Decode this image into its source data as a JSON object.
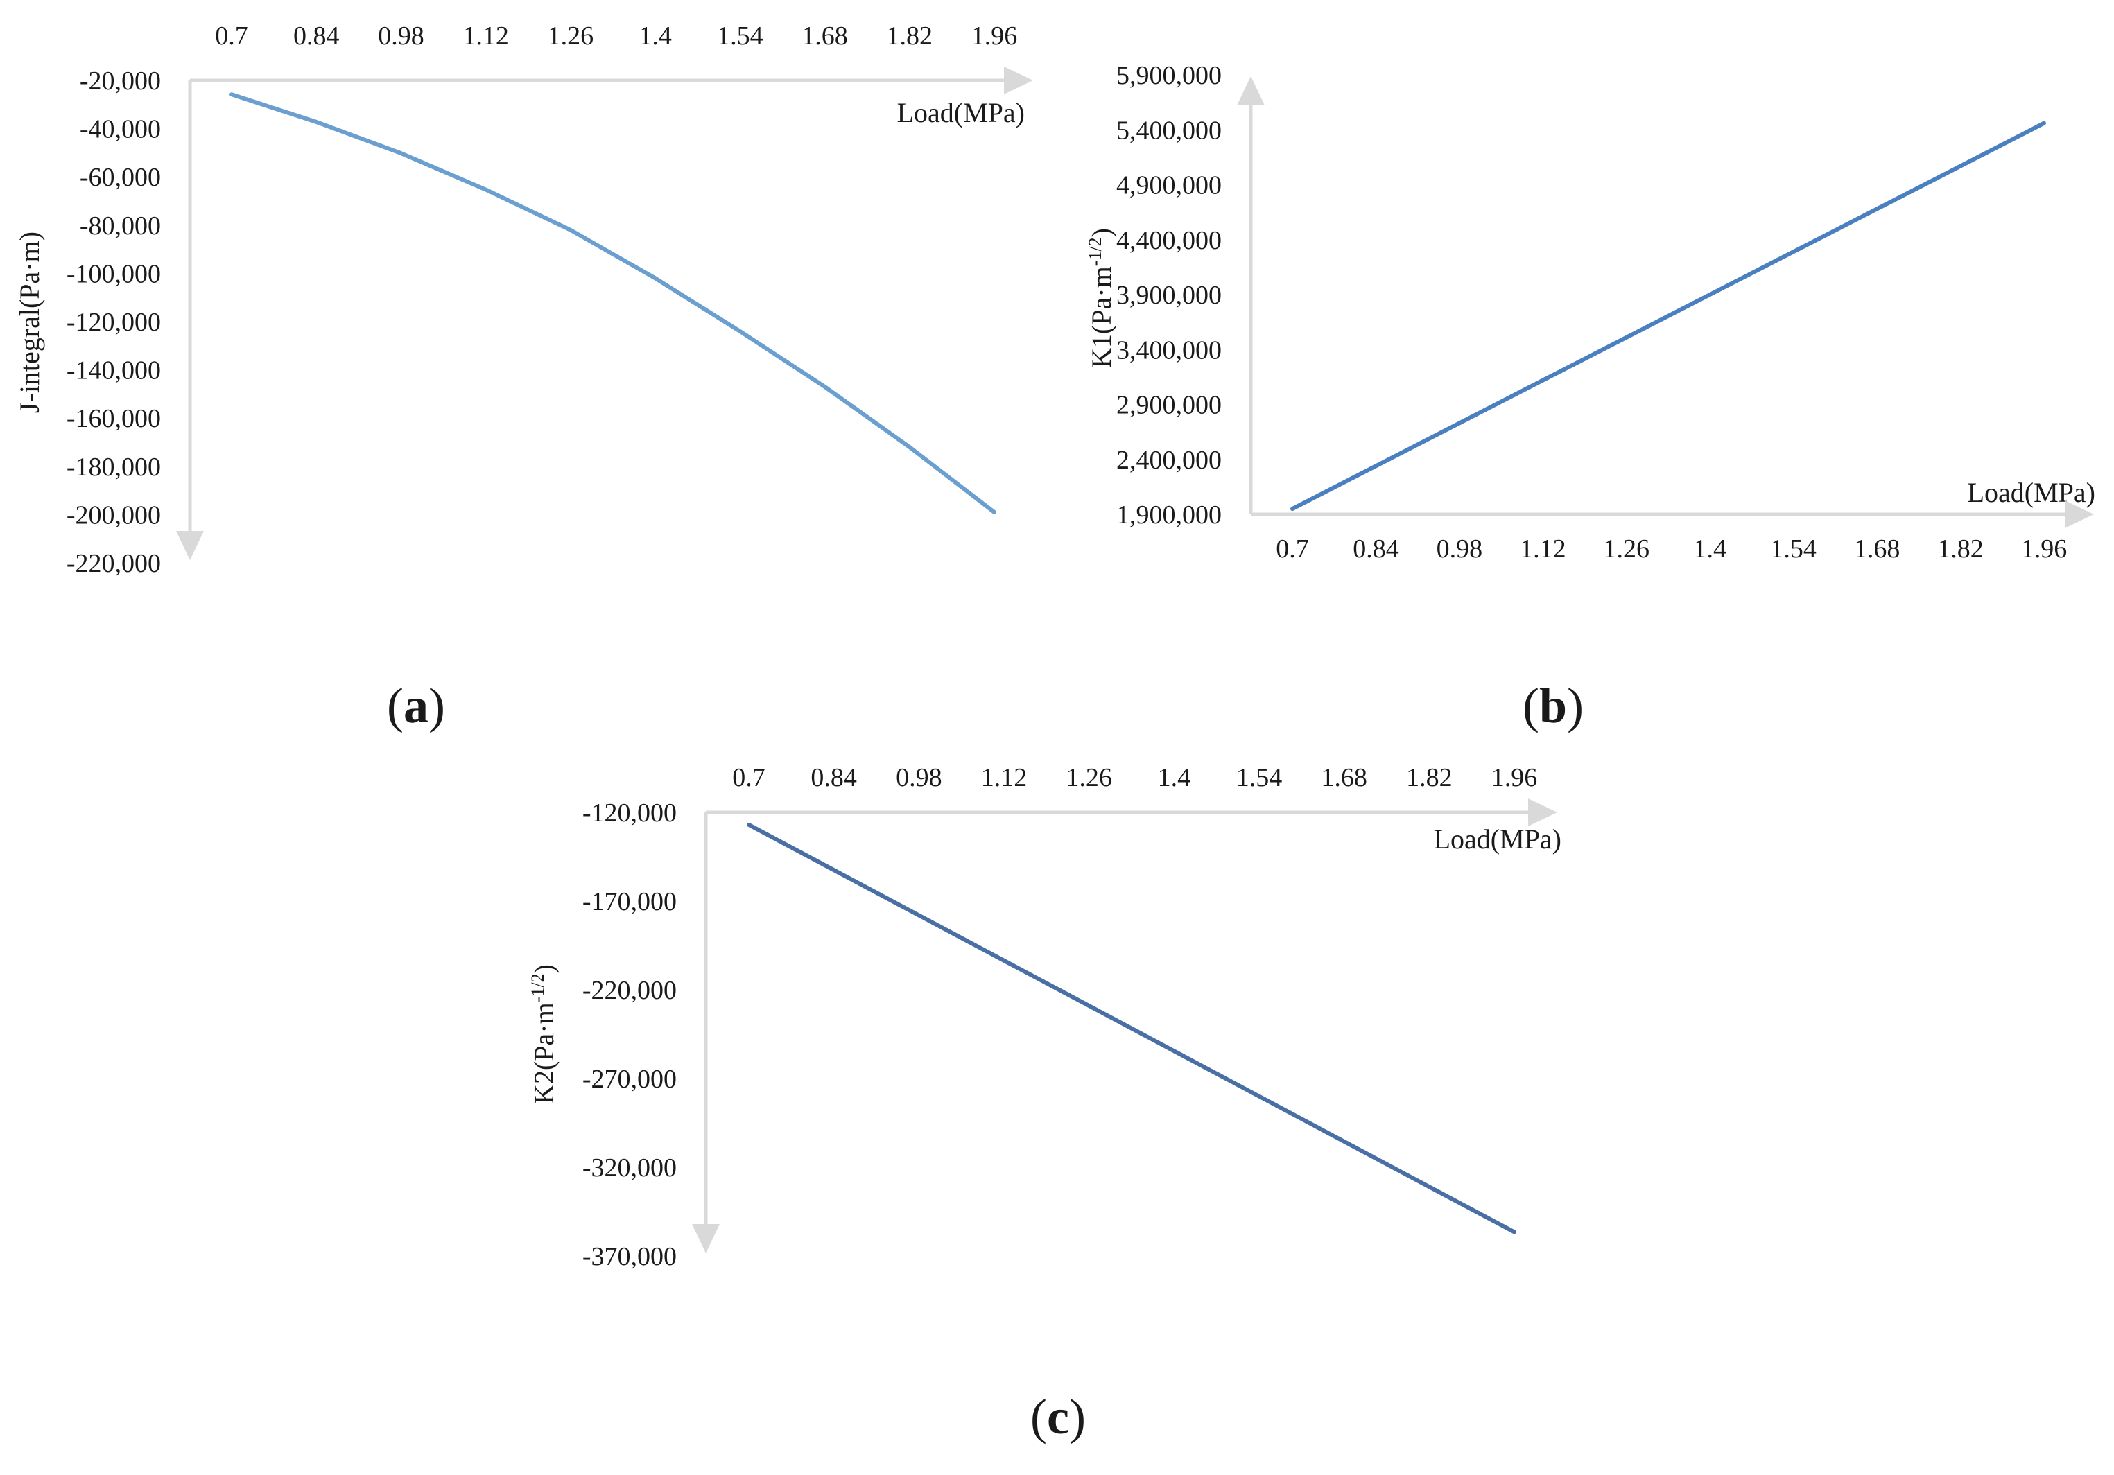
{
  "figure": {
    "panels": [
      {
        "label_open": "(",
        "label_letter": "a",
        "label_close": ")"
      },
      {
        "label_open": "(",
        "label_letter": "b",
        "label_close": ")"
      },
      {
        "label_open": "(",
        "label_letter": "c",
        "label_close": ")"
      }
    ]
  },
  "chart_data": [
    {
      "type": "line",
      "x": [
        0.7,
        0.84,
        0.98,
        1.12,
        1.26,
        1.4,
        1.54,
        1.68,
        1.82,
        1.96
      ],
      "x_tick_labels": [
        "0.7",
        "0.84",
        "0.98",
        "1.12",
        "1.26",
        "1.4",
        "1.54",
        "1.68",
        "1.82",
        "1.96"
      ],
      "series": [
        {
          "values": [
            -25800,
            -37200,
            -50200,
            -65300,
            -82000,
            -102000,
            -124000,
            -147000,
            -172000,
            -199000
          ],
          "color": "#6a9fd0"
        }
      ],
      "xlabel": "Load(MPa)",
      "ylabel": "J-integral(Pa·m)",
      "ylim": [
        -220000,
        -20000
      ],
      "y_ticks": [
        -20000,
        -40000,
        -60000,
        -80000,
        -100000,
        -120000,
        -140000,
        -160000,
        -180000,
        -200000,
        -220000
      ],
      "y_tick_labels": [
        "-20,000",
        "-40,000",
        "-60,000",
        "-80,000",
        "-100,000",
        "-120,000",
        "-140,000",
        "-160,000",
        "-180,000",
        "-200,000",
        "-220,000"
      ],
      "x_axis_position": "top",
      "y_axis_direction": "downward",
      "grid": false
    },
    {
      "type": "line",
      "x": [
        0.7,
        0.84,
        0.98,
        1.12,
        1.26,
        1.4,
        1.54,
        1.68,
        1.82,
        1.96
      ],
      "x_tick_labels": [
        "0.7",
        "0.84",
        "0.98",
        "1.12",
        "1.26",
        "1.4",
        "1.54",
        "1.68",
        "1.82",
        "1.96"
      ],
      "series": [
        {
          "values": [
            1950000,
            2340000,
            2730000,
            3120000,
            3510000,
            3900000,
            4290000,
            4680000,
            5070000,
            5460000
          ],
          "color": "#4a7fc0"
        }
      ],
      "xlabel": "Load(MPa)",
      "ylabel_main": "K1(Pa·m",
      "ylabel_sup": "-1/2",
      "ylabel_end": ")",
      "ylim": [
        1900000,
        5900000
      ],
      "y_ticks": [
        1900000,
        2400000,
        2900000,
        3400000,
        3900000,
        4400000,
        4900000,
        5400000,
        5900000
      ],
      "y_tick_labels": [
        "1,900,000",
        "2,400,000",
        "2,900,000",
        "3,400,000",
        "3,900,000",
        "4,400,000",
        "4,900,000",
        "5,400,000",
        "5,900,000"
      ],
      "x_axis_position": "bottom",
      "y_axis_direction": "upward",
      "grid": false
    },
    {
      "type": "line",
      "x": [
        0.7,
        0.84,
        0.98,
        1.12,
        1.26,
        1.4,
        1.54,
        1.68,
        1.82,
        1.96
      ],
      "x_tick_labels": [
        "0.7",
        "0.84",
        "0.98",
        "1.12",
        "1.26",
        "1.4",
        "1.54",
        "1.68",
        "1.82",
        "1.96"
      ],
      "series": [
        {
          "values": [
            -127000,
            -152500,
            -178000,
            -203500,
            -229000,
            -254500,
            -280000,
            -305500,
            -331000,
            -356500
          ],
          "color": "#4a6fa5"
        }
      ],
      "xlabel": "Load(MPa)",
      "ylabel_main": "K2(Pa·m",
      "ylabel_sup": "-1/2",
      "ylabel_end": ")",
      "ylim": [
        -370000,
        -120000
      ],
      "y_ticks": [
        -120000,
        -170000,
        -220000,
        -270000,
        -320000,
        -370000
      ],
      "y_tick_labels": [
        "-120,000",
        "-170,000",
        "-220,000",
        "-270,000",
        "-320,000",
        "-370,000"
      ],
      "x_axis_position": "top",
      "y_axis_direction": "downward",
      "grid": false
    }
  ]
}
